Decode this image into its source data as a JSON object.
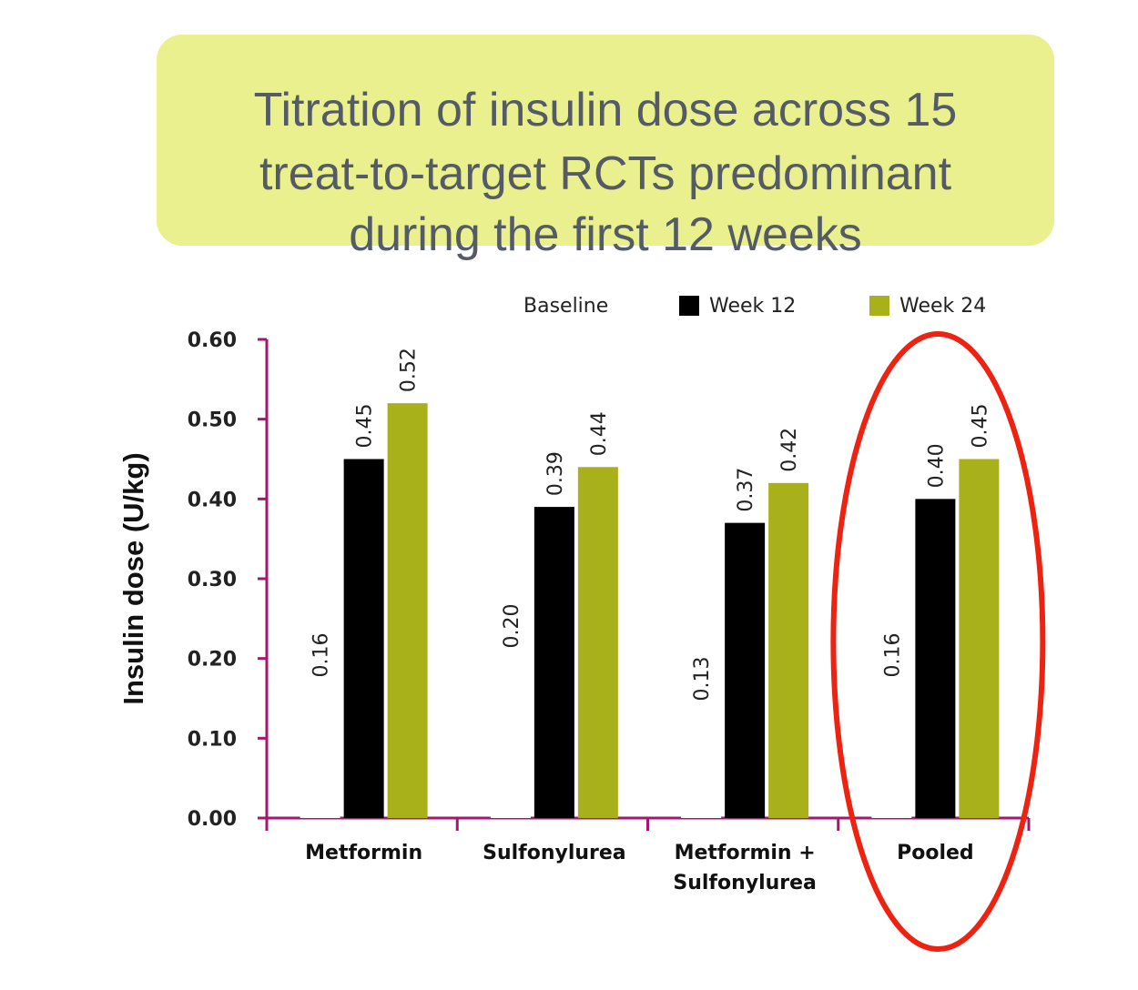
{
  "title_lines": [
    "Titration of insulin dose across 15",
    "treat-to-target RCTs predominant",
    "during the first 12 weeks"
  ],
  "colors": {
    "title_bg": "#e9f08d",
    "title_text": "#555b66",
    "axis": "#a0196e",
    "baseline": "#ffffff",
    "week12": "#000000",
    "week24": "#a9b11a",
    "highlight": "#ee2211"
  },
  "chart_data": {
    "type": "bar",
    "categories": [
      [
        "Metformin"
      ],
      [
        "Sulfonylurea"
      ],
      [
        "Metformin +",
        "Sulfonylurea"
      ],
      [
        "Pooled"
      ]
    ],
    "series": [
      {
        "name": "Baseline",
        "values": [
          0.16,
          0.2,
          0.13,
          0.16
        ],
        "labels": [
          "0.16",
          "0.20",
          "0.13",
          "0.16"
        ]
      },
      {
        "name": "Week 12",
        "values": [
          0.45,
          0.39,
          0.37,
          0.4
        ],
        "labels": [
          "0.45",
          "0.39",
          "0.37",
          "0.40"
        ]
      },
      {
        "name": "Week 24",
        "values": [
          0.52,
          0.44,
          0.42,
          0.45
        ],
        "labels": [
          "0.52",
          "0.44",
          "0.42",
          "0.45"
        ]
      }
    ],
    "ylabel": "Insulin dose (U/kg)",
    "xlabel": "",
    "ylim": [
      0,
      0.6
    ],
    "yticks": [
      "0.00",
      "0.10",
      "0.20",
      "0.30",
      "0.40",
      "0.50",
      "0.60"
    ],
    "legend_position": "top-right",
    "highlighted_category": "Pooled"
  }
}
